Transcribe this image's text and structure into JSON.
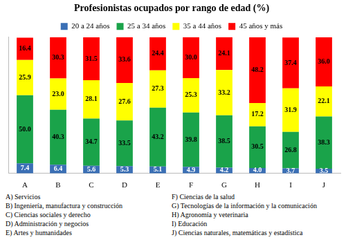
{
  "chart_data": {
    "type": "bar",
    "title": "Profesionistas ocupados por rango de edad (%)",
    "categories": [
      "A",
      "B",
      "C",
      "D",
      "E",
      "F",
      "G",
      "H",
      "I",
      "J"
    ],
    "series": [
      {
        "name": "20 a 24 años",
        "color": "#3a6fb5",
        "values": [
          7.4,
          6.4,
          5.6,
          5.3,
          5.1,
          4.9,
          4.2,
          4.0,
          3.7,
          3.5
        ],
        "value_labels": [
          "7.4",
          "6.4",
          "5.6",
          "5.3",
          "5.1",
          "4.9",
          "4.2",
          "4.0",
          "3.7",
          "3.5"
        ]
      },
      {
        "name": "25 a 34 años",
        "color": "#1aa34a",
        "values": [
          50.0,
          40.3,
          34.7,
          33.5,
          43.2,
          39.8,
          38.5,
          30.5,
          26.8,
          38.3
        ],
        "value_labels": [
          "50.0",
          "40.3",
          "34.7",
          "33.5",
          "43.2",
          "39.8",
          "38.5",
          "30.5",
          "26.8",
          "38.3"
        ]
      },
      {
        "name": "35 a 44 años",
        "color": "#ffff00",
        "values": [
          25.9,
          23.0,
          28.1,
          27.6,
          27.3,
          25.3,
          33.2,
          17.2,
          31.9,
          22.1
        ],
        "value_labels": [
          "25.9",
          "23.0",
          "28.1",
          "27.6",
          "27.3",
          "25.3",
          "33.2",
          "17.2",
          "31.9",
          "22.1"
        ]
      },
      {
        "name": "45 años y más",
        "color": "#ff0000",
        "values": [
          16.4,
          30.3,
          31.5,
          33.6,
          24.4,
          30.0,
          24.1,
          48.2,
          37.4,
          36.0
        ],
        "value_labels": [
          "16.4",
          "30.3",
          "31.5",
          "33.6",
          "24.4",
          "30.0",
          "24.1",
          "48.2",
          "37.4",
          "36.0"
        ]
      }
    ],
    "ylim": [
      0,
      100
    ],
    "stacked": true,
    "data_labels": true,
    "grid": false,
    "legend": "top",
    "tick_labels": "x",
    "annotations": [
      "A) Servicios",
      "B) Ingeniería, manufactura y construcción",
      "C) Ciencias sociales y derecho",
      "D) Administración y negocios",
      "E) Artes y humanidades",
      "F) Ciencias de la salud",
      "G) Tecnologías de la información y la comunicación",
      "H) Agronomía y veterinaria",
      "I) Educación",
      "J) Ciencias naturales, matemáticas y estadística"
    ]
  }
}
